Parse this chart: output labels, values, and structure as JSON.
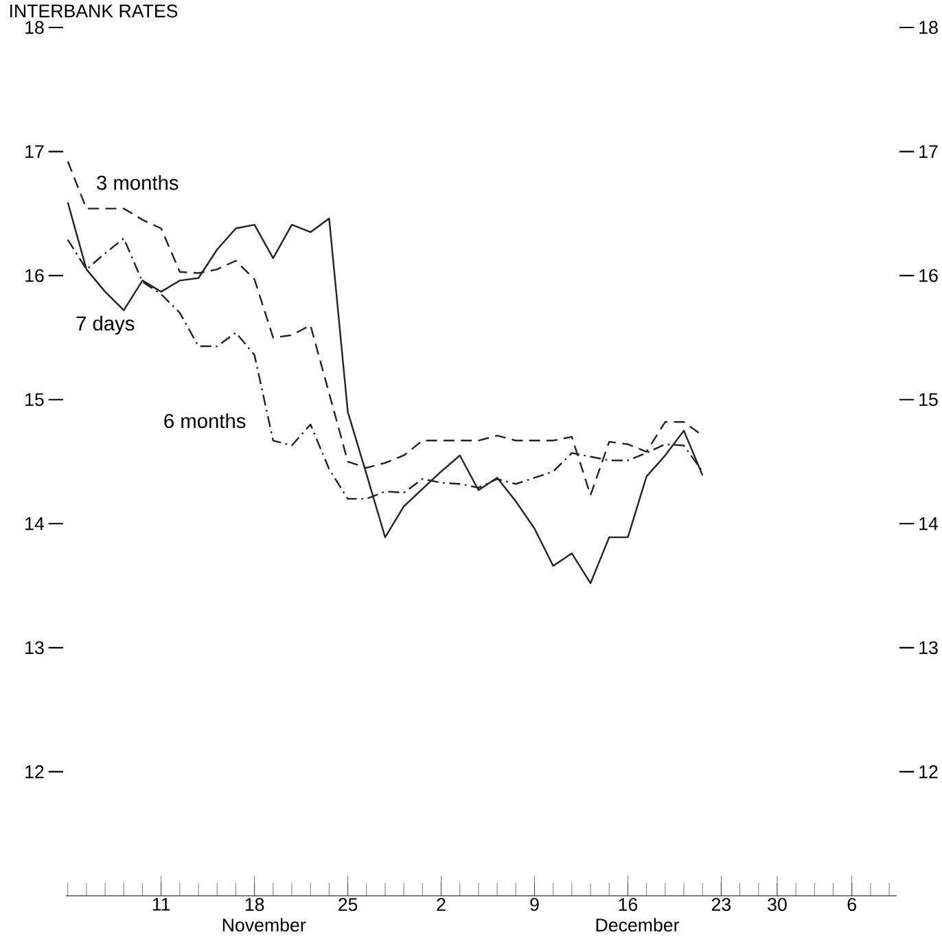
{
  "chart_data": {
    "type": "line",
    "title": "INTERBANK RATES",
    "categories": [
      null,
      null,
      null,
      null,
      null,
      "11",
      null,
      null,
      null,
      null,
      "18",
      null,
      null,
      null,
      null,
      "25",
      null,
      null,
      null,
      null,
      "2",
      null,
      null,
      null,
      null,
      "9",
      null,
      null,
      null,
      null,
      "16",
      null,
      null,
      null,
      null,
      "23",
      null,
      null,
      "30",
      null,
      null,
      null,
      "6",
      null,
      null
    ],
    "series": [
      {
        "name": "7 days",
        "color": "#222222",
        "line_style": "solid",
        "values": [
          16.59,
          16.05,
          15.87,
          15.72,
          15.96,
          15.87,
          15.96,
          15.98,
          16.21,
          16.38,
          16.41,
          16.14,
          16.41,
          16.35,
          16.46,
          14.9,
          14.4,
          13.89,
          14.14,
          14.28,
          14.42,
          14.55,
          14.27,
          14.37,
          14.18,
          13.96,
          13.66,
          13.76,
          13.52,
          13.89,
          13.89,
          14.38,
          14.55,
          14.75,
          14.39,
          null,
          null,
          null,
          null,
          null,
          null,
          null,
          null,
          null,
          null
        ]
      },
      {
        "name": "3 months",
        "color": "#222222",
        "line_style": "dashed",
        "values": [
          16.92,
          16.54,
          16.54,
          16.54,
          16.45,
          16.38,
          16.03,
          16.02,
          16.05,
          16.12,
          15.97,
          15.5,
          15.52,
          15.6,
          15.05,
          14.5,
          14.45,
          14.49,
          14.55,
          14.67,
          14.67,
          14.67,
          14.67,
          14.71,
          14.67,
          14.67,
          14.67,
          14.7,
          14.23,
          14.66,
          14.64,
          14.58,
          14.82,
          14.82,
          14.71,
          null,
          null,
          null,
          null,
          null,
          null,
          null,
          null,
          null,
          null
        ]
      },
      {
        "name": "6 months",
        "color": "#222222",
        "line_style": "dashdot",
        "values": [
          16.29,
          16.05,
          16.18,
          16.3,
          15.95,
          15.85,
          15.7,
          15.43,
          15.43,
          15.54,
          15.36,
          14.67,
          14.63,
          14.8,
          14.44,
          14.2,
          14.2,
          14.26,
          14.25,
          14.36,
          14.33,
          14.32,
          14.29,
          14.36,
          14.32,
          14.37,
          14.42,
          14.57,
          14.54,
          14.51,
          14.51,
          14.57,
          14.64,
          14.63,
          14.42,
          null,
          null,
          null,
          null,
          null,
          null,
          null,
          null,
          null,
          null
        ]
      }
    ],
    "ylim": [
      11,
      18
    ],
    "yticks": [
      12,
      13,
      14,
      15,
      16,
      17,
      18
    ],
    "y2lim": [
      11,
      18
    ],
    "y2ticks": [
      12,
      13,
      14,
      15,
      16,
      17,
      18
    ],
    "annotations": [
      "November",
      "December"
    ]
  }
}
